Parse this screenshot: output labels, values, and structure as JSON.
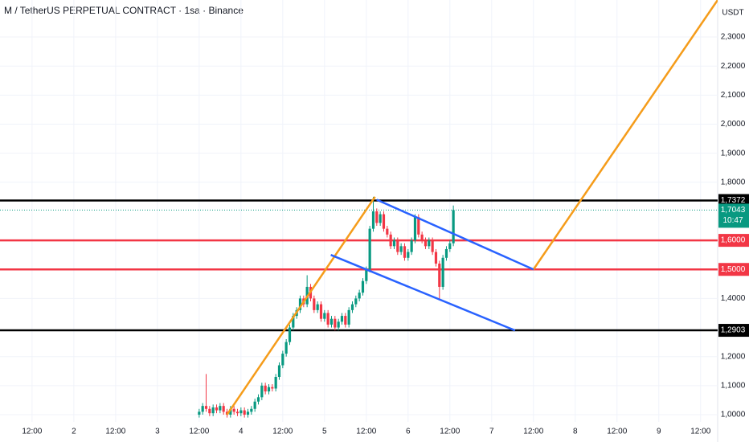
{
  "chart_data": {
    "type": "candlestick",
    "title": "M / TetherUS PERPETUAL CONTRACT · 1sa · Binance",
    "currency": "USDT",
    "up_color": "#089981",
    "down_color": "#f23645",
    "xlim": [
      -21.2,
      184.9
    ],
    "ylim": [
      0.9751,
      2.4274
    ],
    "xticks": [
      {
        "value": -12,
        "label": "12:00"
      },
      {
        "value": 0,
        "label": "2"
      },
      {
        "value": 12,
        "label": "12:00"
      },
      {
        "value": 24,
        "label": "3"
      },
      {
        "value": 36,
        "label": "12:00"
      },
      {
        "value": 48,
        "label": "4"
      },
      {
        "value": 60,
        "label": "12:00"
      },
      {
        "value": 72,
        "label": "5"
      },
      {
        "value": 84,
        "label": "12:00"
      },
      {
        "value": 96,
        "label": "6"
      },
      {
        "value": 108,
        "label": "12:00"
      },
      {
        "value": 120,
        "label": "7"
      },
      {
        "value": 132,
        "label": "12:00"
      },
      {
        "value": 144,
        "label": "8"
      },
      {
        "value": 156,
        "label": "12:00"
      },
      {
        "value": 168,
        "label": "9"
      },
      {
        "value": 180,
        "label": "12:00"
      }
    ],
    "yticks": [
      {
        "value": 1.0,
        "label": "1,0000"
      },
      {
        "value": 1.1,
        "label": "1,1000"
      },
      {
        "value": 1.2,
        "label": "1,2000"
      },
      {
        "value": 1.4,
        "label": "1,4000"
      },
      {
        "value": 1.8,
        "label": "1,8000"
      },
      {
        "value": 1.9,
        "label": "1,9000"
      },
      {
        "value": 2.0,
        "label": "2,0000"
      },
      {
        "value": 2.1,
        "label": "2,1000"
      },
      {
        "value": 2.2,
        "label": "2,2000"
      },
      {
        "value": 2.3,
        "label": "2,3000"
      }
    ],
    "x": [
      36,
      37,
      38,
      39,
      40,
      41,
      42,
      43,
      44,
      45,
      46,
      47,
      48,
      49,
      50,
      51,
      52,
      53,
      54,
      55,
      56,
      57,
      58,
      59,
      60,
      61,
      62,
      63,
      64,
      65,
      66,
      67,
      68,
      69,
      70,
      71,
      72,
      73,
      74,
      75,
      76,
      77,
      78,
      79,
      80,
      81,
      82,
      83,
      84,
      85,
      86,
      87,
      88,
      89,
      90,
      91,
      92,
      93,
      94,
      95,
      96,
      97,
      98,
      99,
      100,
      101,
      102,
      103,
      104,
      105,
      106,
      107,
      108,
      109
    ],
    "open": [
      1.0,
      1.01,
      1.03,
      1.02,
      1.005,
      1.025,
      1.015,
      1.03,
      1.01,
      1.0,
      1.02,
      1.01,
      1.005,
      1.015,
      1.0,
      1.01,
      1.02,
      1.045,
      1.06,
      1.1,
      1.08,
      1.095,
      1.09,
      1.13,
      1.17,
      1.21,
      1.25,
      1.3,
      1.34,
      1.36,
      1.4,
      1.38,
      1.44,
      1.4,
      1.36,
      1.38,
      1.33,
      1.35,
      1.31,
      1.33,
      1.3,
      1.32,
      1.34,
      1.31,
      1.36,
      1.38,
      1.4,
      1.42,
      1.46,
      1.5,
      1.64,
      1.7,
      1.66,
      1.69,
      1.64,
      1.62,
      1.58,
      1.6,
      1.56,
      1.58,
      1.54,
      1.56,
      1.6,
      1.68,
      1.62,
      1.6,
      1.58,
      1.6,
      1.56,
      1.52,
      1.44,
      1.54,
      1.57,
      1.59
    ],
    "high": [
      1.02,
      1.04,
      1.14,
      1.03,
      1.035,
      1.035,
      1.04,
      1.04,
      1.02,
      1.03,
      1.03,
      1.02,
      1.025,
      1.025,
      1.02,
      1.03,
      1.055,
      1.07,
      1.11,
      1.11,
      1.105,
      1.105,
      1.14,
      1.18,
      1.22,
      1.26,
      1.31,
      1.35,
      1.37,
      1.41,
      1.41,
      1.48,
      1.45,
      1.41,
      1.39,
      1.39,
      1.36,
      1.36,
      1.34,
      1.34,
      1.33,
      1.35,
      1.35,
      1.37,
      1.39,
      1.41,
      1.43,
      1.47,
      1.51,
      1.65,
      1.75,
      1.71,
      1.7,
      1.7,
      1.65,
      1.63,
      1.61,
      1.61,
      1.59,
      1.59,
      1.57,
      1.61,
      1.69,
      1.69,
      1.63,
      1.61,
      1.61,
      1.61,
      1.57,
      1.53,
      1.55,
      1.58,
      1.6,
      1.72
    ],
    "low": [
      0.99,
      1.0,
      1.01,
      0.995,
      0.995,
      1.005,
      1.005,
      1.0,
      0.99,
      0.99,
      1.0,
      0.995,
      0.995,
      0.99,
      0.99,
      1.0,
      1.01,
      1.035,
      1.05,
      1.07,
      1.07,
      1.08,
      1.08,
      1.12,
      1.16,
      1.2,
      1.24,
      1.29,
      1.33,
      1.35,
      1.37,
      1.37,
      1.39,
      1.35,
      1.35,
      1.32,
      1.32,
      1.3,
      1.3,
      1.29,
      1.29,
      1.31,
      1.3,
      1.3,
      1.35,
      1.37,
      1.39,
      1.41,
      1.45,
      1.49,
      1.63,
      1.65,
      1.65,
      1.63,
      1.61,
      1.57,
      1.57,
      1.55,
      1.55,
      1.53,
      1.53,
      1.55,
      1.59,
      1.61,
      1.59,
      1.57,
      1.57,
      1.55,
      1.51,
      1.4,
      1.43,
      1.53,
      1.56,
      1.58
    ],
    "close": [
      1.01,
      1.03,
      1.02,
      1.005,
      1.025,
      1.015,
      1.03,
      1.01,
      1.0,
      1.02,
      1.01,
      1.005,
      1.015,
      1.0,
      1.01,
      1.02,
      1.045,
      1.06,
      1.1,
      1.08,
      1.095,
      1.09,
      1.13,
      1.17,
      1.21,
      1.25,
      1.3,
      1.34,
      1.36,
      1.4,
      1.38,
      1.44,
      1.4,
      1.36,
      1.38,
      1.33,
      1.35,
      1.31,
      1.33,
      1.3,
      1.32,
      1.34,
      1.31,
      1.36,
      1.38,
      1.4,
      1.42,
      1.46,
      1.5,
      1.64,
      1.7,
      1.66,
      1.69,
      1.64,
      1.62,
      1.58,
      1.6,
      1.56,
      1.58,
      1.54,
      1.56,
      1.6,
      1.68,
      1.62,
      1.6,
      1.58,
      1.6,
      1.56,
      1.52,
      1.44,
      1.54,
      1.57,
      1.59,
      1.7043
    ],
    "levels": [
      {
        "value": 1.7372,
        "label": "1,7372",
        "color": "#000000"
      },
      {
        "value": 1.6,
        "label": "1,6000",
        "color": "#f23645"
      },
      {
        "value": 1.5,
        "label": "1,5000",
        "color": "#f23645"
      },
      {
        "value": 1.2903,
        "label": "1,2903",
        "color": "#000000"
      }
    ],
    "last": {
      "value": 1.7043,
      "label": "1,7043",
      "countdown": "10:47",
      "color": "#089981"
    },
    "drawings": [
      {
        "color": "#f59c1a",
        "x": [
          44,
          86.5
        ],
        "y": [
          1.0,
          1.75
        ]
      },
      {
        "color": "#f59c1a",
        "x": [
          132,
          184.9
        ],
        "y": [
          1.5,
          2.4274
        ]
      },
      {
        "color": "#2962ff",
        "x": [
          87,
          132
        ],
        "y": [
          1.74,
          1.5
        ]
      },
      {
        "color": "#2962ff",
        "x": [
          73.8,
          126.7
        ],
        "y": [
          1.55,
          1.29
        ]
      }
    ]
  }
}
